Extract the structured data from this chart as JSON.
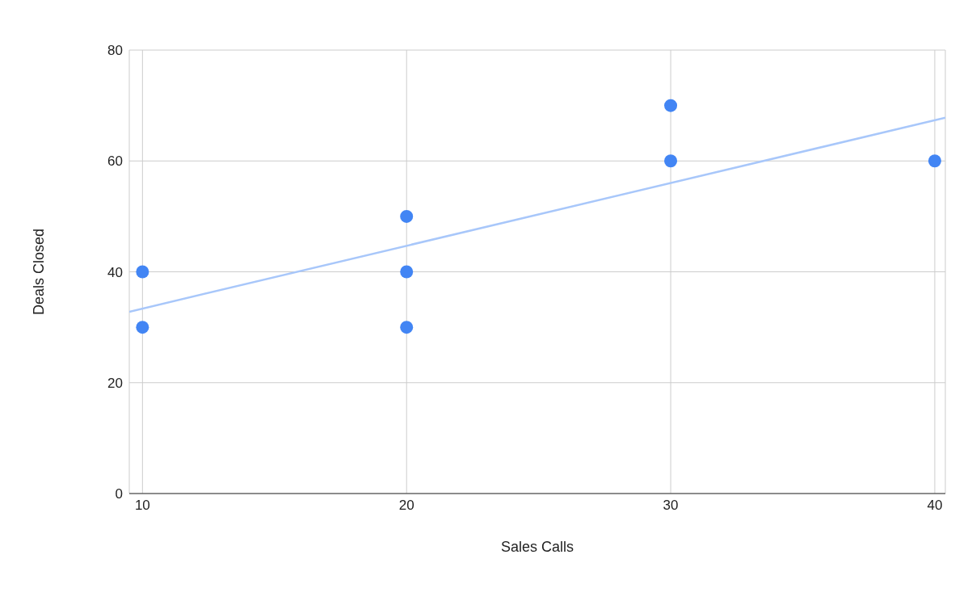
{
  "chart_data": {
    "type": "scatter",
    "xlabel": "Sales Calls",
    "ylabel": "Deals Closed",
    "xlim": [
      9.5,
      40.4
    ],
    "xticks": [
      10,
      20,
      30,
      40
    ],
    "ylim": [
      0,
      80
    ],
    "yticks": [
      0,
      20,
      40,
      60,
      80
    ],
    "grid": true,
    "legend": false,
    "series": [
      {
        "marker": "circle",
        "color": "#4285f4",
        "x": [
          10,
          10,
          20,
          20,
          20,
          30,
          30,
          40
        ],
        "values": [
          40,
          30,
          50,
          40,
          30,
          70,
          60,
          60
        ]
      },
      {
        "type": "line",
        "color": "#a8c7fa",
        "x": [
          9.5,
          40.4
        ],
        "values": [
          32.8,
          67.8
        ]
      }
    ]
  }
}
